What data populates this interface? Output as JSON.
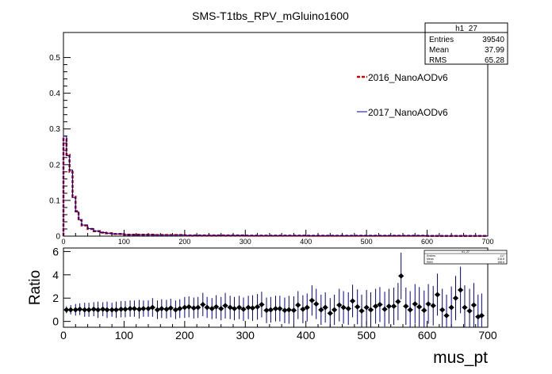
{
  "title": "SMS-T1tbs_RPV_mGluino1600",
  "stats_box": {
    "name": "h1_27",
    "rows": [
      {
        "label": "Entries",
        "value": "39540"
      },
      {
        "label": "Mean",
        "value": "37.99"
      },
      {
        "label": "RMS",
        "value": "65.28"
      }
    ]
  },
  "ratio_stats_box": {
    "name": "h1_27",
    "rows": [
      {
        "label": "Entries",
        "value": "117"
      },
      {
        "label": "Mean",
        "value": "318.8"
      },
      {
        "label": "RMS",
        "value": "198.6"
      }
    ]
  },
  "colors": {
    "series_2016": "#cc0000",
    "series_2017": "#000099",
    "ratio": "#000099"
  },
  "chart_data": [
    {
      "type": "line",
      "title": "SMS-T1tbs_RPV_mGluino1600",
      "xlabel": "",
      "ylabel": "",
      "xlim": [
        0,
        700
      ],
      "ylim": [
        0,
        0.57
      ],
      "x_ticks": [
        0,
        100,
        200,
        300,
        400,
        500,
        600,
        700
      ],
      "y_ticks": [
        0,
        0.1,
        0.2,
        0.3,
        0.4,
        0.5
      ],
      "y_tick_labels": [
        "0",
        "0.1",
        "0.2",
        "0.3",
        "0.4",
        "0.5"
      ],
      "legend_position": "right",
      "grid": false,
      "bin_edges": [
        0,
        5,
        10,
        15,
        20,
        25,
        30,
        40,
        50,
        60,
        70,
        80,
        100,
        150,
        200,
        300,
        400,
        500,
        600,
        700
      ],
      "series": [
        {
          "name": "2016_NanoAODv6",
          "style": "dashed",
          "values": [
            0.272,
            0.228,
            0.18,
            0.11,
            0.07,
            0.045,
            0.03,
            0.02,
            0.014,
            0.01,
            0.008,
            0.006,
            0.004,
            0.003,
            0.002,
            0.0015,
            0.001,
            0.001,
            0.0005
          ]
        },
        {
          "name": "2017_NanoAODv6",
          "style": "solid",
          "values": [
            0.28,
            0.225,
            0.185,
            0.108,
            0.068,
            0.046,
            0.031,
            0.021,
            0.014,
            0.01,
            0.008,
            0.006,
            0.004,
            0.003,
            0.002,
            0.0015,
            0.001,
            0.001,
            0.0005
          ]
        }
      ]
    },
    {
      "type": "scatter",
      "xlabel": "mus_pt",
      "ylabel": "Ratio",
      "xlim": [
        0,
        700
      ],
      "ylim": [
        -0.5,
        6.3
      ],
      "x_ticks": [
        0,
        100,
        200,
        300,
        400,
        500,
        600,
        700
      ],
      "y_ticks": [
        0,
        2,
        4,
        6
      ],
      "grid": false,
      "points": [
        {
          "x": 5,
          "y": 1.0,
          "err": 0.3
        },
        {
          "x": 12,
          "y": 1.0,
          "err": 0.4
        },
        {
          "x": 20,
          "y": 1.0,
          "err": 0.5
        },
        {
          "x": 27,
          "y": 1.05,
          "err": 0.5
        },
        {
          "x": 35,
          "y": 1.0,
          "err": 0.6
        },
        {
          "x": 42,
          "y": 1.0,
          "err": 0.6
        },
        {
          "x": 50,
          "y": 1.05,
          "err": 0.6
        },
        {
          "x": 57,
          "y": 1.0,
          "err": 0.7
        },
        {
          "x": 65,
          "y": 1.05,
          "err": 0.6
        },
        {
          "x": 72,
          "y": 1.0,
          "err": 0.7
        },
        {
          "x": 80,
          "y": 1.0,
          "err": 0.6
        },
        {
          "x": 87,
          "y": 1.0,
          "err": 0.7
        },
        {
          "x": 95,
          "y": 1.05,
          "err": 0.7
        },
        {
          "x": 102,
          "y": 1.05,
          "err": 0.7
        },
        {
          "x": 110,
          "y": 1.1,
          "err": 0.7
        },
        {
          "x": 117,
          "y": 1.1,
          "err": 0.7
        },
        {
          "x": 125,
          "y": 1.05,
          "err": 0.8
        },
        {
          "x": 132,
          "y": 1.1,
          "err": 0.7
        },
        {
          "x": 140,
          "y": 1.1,
          "err": 0.7
        },
        {
          "x": 147,
          "y": 1.2,
          "err": 0.8
        },
        {
          "x": 155,
          "y": 1.0,
          "err": 0.8
        },
        {
          "x": 162,
          "y": 1.1,
          "err": 0.8
        },
        {
          "x": 170,
          "y": 1.05,
          "err": 0.8
        },
        {
          "x": 177,
          "y": 1.15,
          "err": 0.8
        },
        {
          "x": 185,
          "y": 1.0,
          "err": 0.8
        },
        {
          "x": 192,
          "y": 1.1,
          "err": 0.8
        },
        {
          "x": 200,
          "y": 1.2,
          "err": 0.9
        },
        {
          "x": 207,
          "y": 1.25,
          "err": 0.9
        },
        {
          "x": 215,
          "y": 1.15,
          "err": 0.9
        },
        {
          "x": 222,
          "y": 1.2,
          "err": 0.9
        },
        {
          "x": 230,
          "y": 1.45,
          "err": 1.0
        },
        {
          "x": 237,
          "y": 1.2,
          "err": 0.9
        },
        {
          "x": 245,
          "y": 1.1,
          "err": 0.9
        },
        {
          "x": 252,
          "y": 1.25,
          "err": 1.0
        },
        {
          "x": 260,
          "y": 1.1,
          "err": 1.0
        },
        {
          "x": 267,
          "y": 1.35,
          "err": 1.1
        },
        {
          "x": 275,
          "y": 1.2,
          "err": 1.0
        },
        {
          "x": 282,
          "y": 1.1,
          "err": 1.0
        },
        {
          "x": 290,
          "y": 1.2,
          "err": 1.0
        },
        {
          "x": 297,
          "y": 1.05,
          "err": 1.0
        },
        {
          "x": 305,
          "y": 1.2,
          "err": 1.0
        },
        {
          "x": 312,
          "y": 1.15,
          "err": 1.1
        },
        {
          "x": 320,
          "y": 1.25,
          "err": 1.1
        },
        {
          "x": 327,
          "y": 1.45,
          "err": 1.1
        },
        {
          "x": 335,
          "y": 0.95,
          "err": 1.1
        },
        {
          "x": 342,
          "y": 1.0,
          "err": 1.1
        },
        {
          "x": 350,
          "y": 1.1,
          "err": 1.1
        },
        {
          "x": 357,
          "y": 1.1,
          "err": 1.1
        },
        {
          "x": 365,
          "y": 0.95,
          "err": 1.1
        },
        {
          "x": 372,
          "y": 1.0,
          "err": 1.2
        },
        {
          "x": 380,
          "y": 0.95,
          "err": 1.2
        },
        {
          "x": 387,
          "y": 1.4,
          "err": 1.2
        },
        {
          "x": 395,
          "y": 1.05,
          "err": 1.2
        },
        {
          "x": 402,
          "y": 1.2,
          "err": 1.2
        },
        {
          "x": 410,
          "y": 1.8,
          "err": 1.3
        },
        {
          "x": 417,
          "y": 1.5,
          "err": 1.3
        },
        {
          "x": 425,
          "y": 1.0,
          "err": 1.3
        },
        {
          "x": 432,
          "y": 1.2,
          "err": 1.3
        },
        {
          "x": 440,
          "y": 0.7,
          "err": 1.3
        },
        {
          "x": 447,
          "y": 1.0,
          "err": 1.3
        },
        {
          "x": 455,
          "y": 1.4,
          "err": 1.4
        },
        {
          "x": 462,
          "y": 1.2,
          "err": 1.4
        },
        {
          "x": 470,
          "y": 1.1,
          "err": 1.4
        },
        {
          "x": 477,
          "y": 1.75,
          "err": 1.4
        },
        {
          "x": 485,
          "y": 1.25,
          "err": 1.5
        },
        {
          "x": 492,
          "y": 0.9,
          "err": 1.4
        },
        {
          "x": 500,
          "y": 1.2,
          "err": 1.5
        },
        {
          "x": 507,
          "y": 1.0,
          "err": 1.5
        },
        {
          "x": 515,
          "y": 1.3,
          "err": 1.5
        },
        {
          "x": 522,
          "y": 1.45,
          "err": 1.5
        },
        {
          "x": 530,
          "y": 1.05,
          "err": 1.5
        },
        {
          "x": 537,
          "y": 1.3,
          "err": 1.5
        },
        {
          "x": 545,
          "y": 1.3,
          "err": 1.6
        },
        {
          "x": 552,
          "y": 1.7,
          "err": 1.6
        },
        {
          "x": 557,
          "y": 3.9,
          "err": 2.0
        },
        {
          "x": 565,
          "y": 1.3,
          "err": 1.6
        },
        {
          "x": 572,
          "y": 1.0,
          "err": 1.6
        },
        {
          "x": 580,
          "y": 1.5,
          "err": 1.7
        },
        {
          "x": 587,
          "y": 1.25,
          "err": 1.7
        },
        {
          "x": 595,
          "y": 0.95,
          "err": 1.7
        },
        {
          "x": 602,
          "y": 1.5,
          "err": 1.7
        },
        {
          "x": 610,
          "y": 1.35,
          "err": 1.7
        },
        {
          "x": 617,
          "y": 2.3,
          "err": 1.8
        },
        {
          "x": 625,
          "y": 1.0,
          "err": 1.8
        },
        {
          "x": 632,
          "y": 0.5,
          "err": 1.8
        },
        {
          "x": 640,
          "y": 1.2,
          "err": 1.8
        },
        {
          "x": 647,
          "y": 2.0,
          "err": 1.9
        },
        {
          "x": 655,
          "y": 2.7,
          "err": 2.0
        },
        {
          "x": 662,
          "y": 1.2,
          "err": 1.9
        },
        {
          "x": 670,
          "y": 0.9,
          "err": 1.9
        },
        {
          "x": 677,
          "y": 1.4,
          "err": 1.9
        },
        {
          "x": 684,
          "y": 0.4,
          "err": 1.9
        },
        {
          "x": 690,
          "y": 0.5,
          "err": 1.9
        }
      ]
    }
  ]
}
